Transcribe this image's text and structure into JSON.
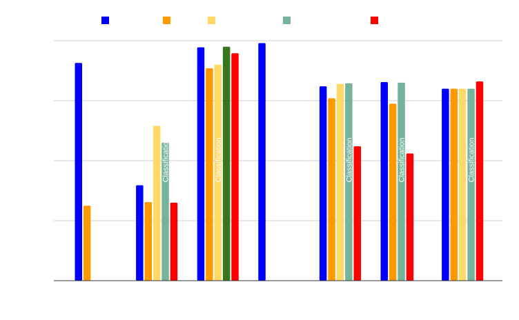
{
  "chart_data": {
    "type": "bar",
    "title": "",
    "xlabel": "",
    "ylabel": "",
    "ylim": [
      0,
      4
    ],
    "grid": true,
    "legend_position": "top",
    "categories": [
      "",
      "",
      "",
      "",
      "",
      "",
      ""
    ],
    "series": [
      {
        "name": "",
        "color": "#0000ff",
        "values": [
          3.63,
          1.59,
          3.89,
          3.96,
          3.24,
          3.31,
          3.2
        ]
      },
      {
        "name": "",
        "color": "#ff9900",
        "values": [
          1.25,
          1.31,
          3.54,
          null,
          3.04,
          2.95,
          3.2
        ]
      },
      {
        "name": "",
        "color": "#ffd966",
        "values": [
          null,
          2.58,
          3.6,
          null,
          3.28,
          null,
          3.2
        ]
      },
      {
        "name": "",
        "color": "#38761d",
        "values": [
          null,
          null,
          3.9,
          null,
          null,
          null,
          null
        ]
      },
      {
        "name": "",
        "color": "#76b39d",
        "values": [
          null,
          2.3,
          null,
          null,
          3.29,
          3.3,
          3.2
        ]
      },
      {
        "name": "",
        "color": "#ff0000",
        "values": [
          null,
          1.3,
          3.79,
          null,
          2.24,
          2.12,
          3.32
        ]
      }
    ],
    "legend_items": [
      {
        "name": "",
        "color": "#0000ff"
      },
      {
        "name": "",
        "color": "#ff9900"
      },
      {
        "name": "",
        "color": "#ffd966"
      },
      {
        "name": "",
        "color": "#76b39d"
      },
      {
        "name": "",
        "color": "#ff0000"
      }
    ],
    "annotations": [
      {
        "text": "Classification",
        "category_index": 1,
        "series_index": 4
      },
      {
        "text": "Classification",
        "category_index": 2,
        "series_index": 2
      },
      {
        "text": "Classification",
        "category_index": 4,
        "series_index": 4
      },
      {
        "text": "Classification",
        "category_index": 5,
        "series_index": 4
      },
      {
        "text": "Classification",
        "category_index": 6,
        "series_index": 4
      }
    ]
  }
}
